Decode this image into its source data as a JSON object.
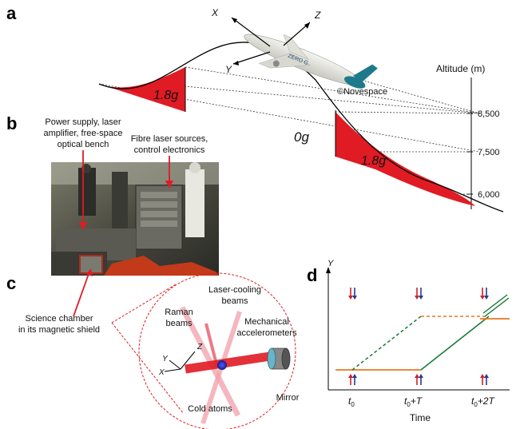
{
  "panels": {
    "a": "a",
    "b": "b",
    "c": "c",
    "d": "d"
  },
  "flight": {
    "axis_x": "X",
    "axis_y": "Y",
    "axis_z": "Z",
    "label_1_8g_left": "1.8g",
    "label_0g": "0g",
    "label_1_8g_right": "1.8g",
    "credit": "©Novespace",
    "altitude_title": "Altitude (m)",
    "altitude_ticks": [
      "8,500",
      "7,500",
      "6,000"
    ],
    "aircraft_livery": "ZERO G"
  },
  "photo": {
    "label_power": [
      "Power supply, laser",
      "amplifier, free-space",
      "optical bench"
    ],
    "label_fibre": [
      "Fibre laser sources,",
      "control electronics"
    ],
    "label_science": [
      "Science chamber",
      "in its magnetic shield"
    ]
  },
  "schematic": {
    "laser_cooling": [
      "Laser-cooling",
      "beams"
    ],
    "raman": [
      "Raman",
      "beams"
    ],
    "mechanical": [
      "Mechanical",
      "accelerometers"
    ],
    "cold_atoms": "Cold atoms",
    "mirror": "Mirror",
    "axis_x": "X",
    "axis_y": "Y",
    "axis_z": "Z"
  },
  "timing": {
    "y_axis_label": "Y",
    "x_axis_label": "Time",
    "tick_t0": "t",
    "tick_t0_sub": "0",
    "tick_t0T": "+T",
    "tick_t02T": "+2T",
    "colors": {
      "orange": "#e87722",
      "green": "#1a7a3a",
      "red": "#d0202a",
      "blue": "#2a3a8a"
    }
  }
}
